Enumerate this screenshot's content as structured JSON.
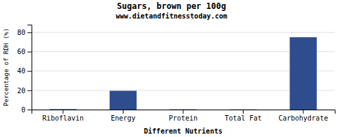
{
  "chart_data": {
    "type": "bar",
    "title": "Sugars, brown per 100g",
    "subtitle": "www.dietandfitnesstoday.com",
    "xlabel": "Different Nutrients",
    "ylabel": "Percentage of RDH (%)",
    "categories": [
      "Riboflavin",
      "Energy",
      "Protein",
      "Total Fat",
      "Carbohydrate"
    ],
    "values": [
      0.5,
      19.5,
      0.3,
      0.2,
      75.0
    ],
    "color": "#2e4d8e",
    "ylim": [
      0,
      88
    ],
    "yticks": [
      0,
      20,
      40,
      60,
      80
    ],
    "grid": true
  }
}
